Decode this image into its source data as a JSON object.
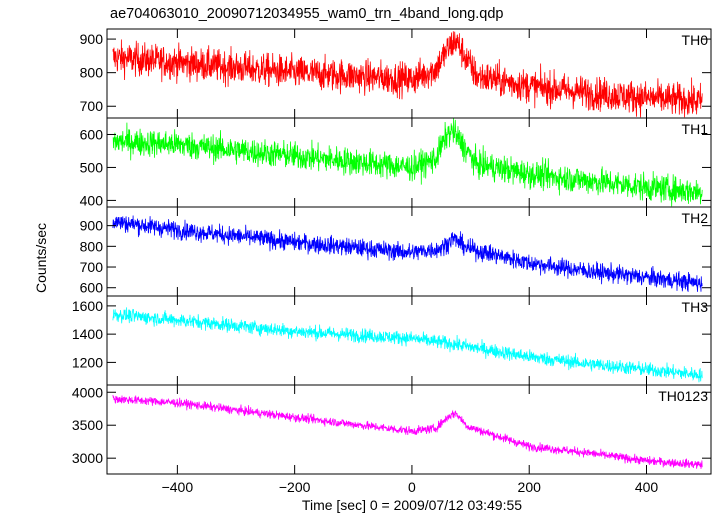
{
  "chart_data": {
    "type": "line",
    "title": "ae704063010_20090712034955_wam0_trn_4band_long.qdp",
    "xlabel": "Time [sec] 0 = 2009/07/12 03:49:55",
    "ylabel": "Counts/sec",
    "xlim": [
      -520,
      510
    ],
    "x_ticks": [
      -400,
      -200,
      0,
      200,
      400
    ],
    "x_range": [
      -510,
      495
    ],
    "bin_sec": 0.5,
    "grid": false,
    "panels": [
      {
        "name": "TH0",
        "color": "#ff0000",
        "ylim": [
          665,
          930
        ],
        "y_ticks": [
          700,
          800,
          900
        ],
        "trend": [
          [
            -510,
            845
          ],
          [
            -400,
            830
          ],
          [
            -200,
            800
          ],
          [
            0,
            780
          ],
          [
            40,
            810
          ],
          [
            65,
            880
          ],
          [
            75,
            895
          ],
          [
            90,
            850
          ],
          [
            110,
            790
          ],
          [
            200,
            760
          ],
          [
            300,
            740
          ],
          [
            400,
            725
          ],
          [
            495,
            715
          ]
        ],
        "noise": 45
      },
      {
        "name": "TH1",
        "color": "#00ff00",
        "ylim": [
          380,
          650
        ],
        "y_ticks": [
          400,
          500,
          600
        ],
        "trend": [
          [
            -510,
            580
          ],
          [
            -400,
            570
          ],
          [
            -200,
            535
          ],
          [
            0,
            500
          ],
          [
            40,
            525
          ],
          [
            60,
            600
          ],
          [
            70,
            610
          ],
          [
            90,
            560
          ],
          [
            110,
            510
          ],
          [
            200,
            480
          ],
          [
            300,
            460
          ],
          [
            400,
            440
          ],
          [
            495,
            425
          ]
        ],
        "noise": 38
      },
      {
        "name": "TH2",
        "color": "#0000ff",
        "ylim": [
          560,
          990
        ],
        "y_ticks": [
          600,
          700,
          800,
          900
        ],
        "trend": [
          [
            -510,
            920
          ],
          [
            -400,
            880
          ],
          [
            -200,
            820
          ],
          [
            0,
            770
          ],
          [
            50,
            790
          ],
          [
            70,
            840
          ],
          [
            95,
            790
          ],
          [
            200,
            720
          ],
          [
            300,
            680
          ],
          [
            400,
            650
          ],
          [
            495,
            620
          ]
        ],
        "noise": 40
      },
      {
        "name": "TH3",
        "color": "#00ffff",
        "ylim": [
          1040,
          1670
        ],
        "y_ticks": [
          1200,
          1400,
          1600
        ],
        "trend": [
          [
            -510,
            1540
          ],
          [
            -400,
            1500
          ],
          [
            -200,
            1420
          ],
          [
            0,
            1370
          ],
          [
            70,
            1330
          ],
          [
            200,
            1240
          ],
          [
            300,
            1190
          ],
          [
            400,
            1150
          ],
          [
            495,
            1110
          ]
        ],
        "noise": 45
      },
      {
        "name": "TH0123",
        "color": "#ff00ff",
        "ylim": [
          2760,
          4110
        ],
        "y_ticks": [
          3000,
          3500,
          4000
        ],
        "trend": [
          [
            -510,
            3900
          ],
          [
            -400,
            3840
          ],
          [
            -200,
            3620
          ],
          [
            0,
            3410
          ],
          [
            40,
            3450
          ],
          [
            65,
            3650
          ],
          [
            75,
            3680
          ],
          [
            95,
            3480
          ],
          [
            200,
            3180
          ],
          [
            300,
            3080
          ],
          [
            400,
            2960
          ],
          [
            495,
            2900
          ]
        ],
        "noise": 60
      }
    ]
  }
}
